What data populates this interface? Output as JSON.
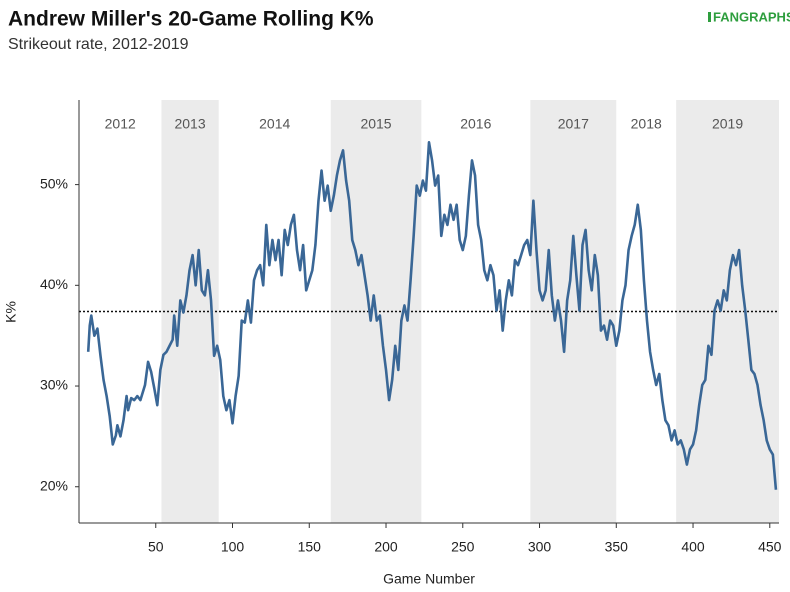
{
  "chart_data": {
    "type": "line",
    "title": "Andrew Miller's 20-Game Rolling K%",
    "subtitle": "Strikeout rate, 2012-2019",
    "logo": "FANGRAPHS",
    "xlabel": "Game Number",
    "ylabel": "K%",
    "color": "#3a6796",
    "xlim": [
      0,
      456
    ],
    "ylim": [
      16.4,
      58.4
    ],
    "xticks": [
      50,
      100,
      150,
      200,
      250,
      300,
      350,
      400,
      450
    ],
    "yticks": [
      {
        "value": 20,
        "label": "20%"
      },
      {
        "value": 30,
        "label": "30%"
      },
      {
        "value": 40,
        "label": "40%"
      },
      {
        "value": 50,
        "label": "50%"
      }
    ],
    "reference_line": 37.4,
    "seasons": [
      {
        "label": "2012",
        "start": 0,
        "end": 53.7,
        "shaded": false
      },
      {
        "label": "2013",
        "start": 53.7,
        "end": 91,
        "shaded": true
      },
      {
        "label": "2014",
        "start": 91,
        "end": 164,
        "shaded": false
      },
      {
        "label": "2015",
        "start": 164,
        "end": 223,
        "shaded": true
      },
      {
        "label": "2016",
        "start": 223,
        "end": 294,
        "shaded": false
      },
      {
        "label": "2017",
        "start": 294,
        "end": 350,
        "shaded": true
      },
      {
        "label": "2018",
        "start": 350,
        "end": 389,
        "shaded": false
      },
      {
        "label": "2019",
        "start": 389,
        "end": 456,
        "shaded": true
      }
    ],
    "x": [
      6,
      7,
      8,
      10,
      12,
      14,
      16,
      18,
      20,
      22,
      24,
      25,
      27,
      29,
      31,
      32,
      34,
      36,
      38,
      40,
      43,
      45,
      47,
      49,
      51,
      53,
      55,
      57,
      59,
      61,
      62,
      64,
      66,
      68,
      70,
      72,
      74,
      76,
      78,
      80,
      82,
      84,
      86,
      88,
      90,
      92,
      94,
      96,
      98,
      100,
      102,
      104,
      106,
      108,
      110,
      112,
      114,
      116,
      118,
      120,
      122,
      124,
      126,
      128,
      130,
      132,
      134,
      136,
      138,
      140,
      142,
      144,
      146,
      148,
      150,
      152,
      154,
      156,
      158,
      160,
      162,
      164,
      166,
      168,
      170,
      172,
      174,
      176,
      178,
      180,
      182,
      184,
      186,
      188,
      190,
      192,
      194,
      196,
      198,
      200,
      202,
      204,
      206,
      208,
      210,
      212,
      214,
      216,
      218,
      220,
      222,
      224,
      226,
      228,
      230,
      232,
      234,
      236,
      238,
      240,
      242,
      244,
      246,
      248,
      250,
      252,
      254,
      256,
      258,
      260,
      262,
      264,
      266,
      268,
      270,
      272,
      274,
      276,
      278,
      280,
      282,
      284,
      286,
      288,
      290,
      292,
      294,
      296,
      298,
      300,
      302,
      304,
      306,
      308,
      310,
      312,
      314,
      316,
      318,
      320,
      322,
      324,
      326,
      328,
      330,
      332,
      334,
      336,
      338,
      340,
      342,
      344,
      346,
      348,
      350,
      352,
      354,
      356,
      358,
      360,
      362,
      364,
      366,
      368,
      370,
      372,
      374,
      376,
      378,
      380,
      382,
      384,
      386,
      388,
      390,
      392,
      394,
      396,
      398,
      400,
      402,
      404,
      406,
      408,
      410,
      412,
      414,
      416,
      418,
      420,
      422,
      424,
      426,
      428,
      430,
      432,
      434,
      436,
      438,
      440,
      442,
      444,
      446,
      448,
      450,
      452,
      454
    ],
    "values": [
      33.4,
      36,
      37,
      35,
      35.7,
      33,
      30.6,
      29,
      27,
      24.2,
      25.1,
      26.1,
      25,
      26.6,
      29,
      27.6,
      28.8,
      28.6,
      29,
      28.6,
      30.1,
      32.4,
      31.4,
      29.8,
      28.1,
      31.6,
      33.1,
      33.4,
      34,
      34.6,
      37,
      34,
      38.5,
      37.3,
      39,
      41.5,
      43,
      40,
      43.5,
      39.5,
      39,
      41.5,
      38.5,
      33,
      34,
      32.6,
      29,
      27.6,
      28.6,
      26.3,
      29,
      31,
      36.5,
      36.3,
      38.5,
      36.3,
      40.5,
      41.5,
      42,
      40,
      46,
      42,
      44.5,
      42.5,
      44.5,
      41,
      45.5,
      44,
      46,
      47,
      43.5,
      41.5,
      44,
      39.5,
      40.5,
      41.5,
      44,
      48.4,
      51.4,
      48.4,
      49.9,
      47.4,
      48.9,
      50.9,
      52.4,
      53.4,
      50.4,
      48.4,
      44.5,
      43.5,
      42,
      43,
      41,
      39,
      36.5,
      39,
      36.5,
      37,
      34,
      31.6,
      28.6,
      30.6,
      34,
      31.6,
      36.5,
      38,
      36.5,
      40.5,
      44.9,
      49.9,
      48.9,
      50.4,
      49.4,
      54.2,
      52.4,
      49.9,
      50.9,
      44.9,
      47,
      46,
      48,
      46.5,
      48,
      44.5,
      43.5,
      44.9,
      48.9,
      52.4,
      50.9,
      46,
      44.5,
      41.5,
      40.5,
      42,
      41,
      37.5,
      39.5,
      35.5,
      38.5,
      40.5,
      39,
      42.5,
      42,
      43,
      44,
      44.5,
      43,
      48.4,
      43.5,
      39.5,
      38.5,
      39.5,
      43.5,
      39,
      36.5,
      38.5,
      36.5,
      33.4,
      38.5,
      40.5,
      44.9,
      41,
      37.5,
      44,
      45.5,
      41.5,
      39.5,
      43,
      41,
      35.5,
      36,
      34.6,
      36.5,
      36,
      34,
      35.5,
      38.5,
      40,
      43.5,
      44.9,
      46,
      48,
      45.5,
      40.5,
      36.5,
      33.4,
      31.6,
      30.1,
      31.2,
      28.6,
      26.6,
      26.1,
      24.6,
      25.6,
      24.2,
      24.6,
      23.7,
      22.2,
      23.7,
      24.2,
      25.6,
      28.1,
      30.1,
      30.6,
      34,
      33.1,
      37.5,
      38.5,
      37.5,
      39.5,
      38.5,
      41.5,
      43,
      42,
      43.5,
      40,
      37.5,
      34.6,
      31.6,
      31.2,
      30.1,
      28.1,
      26.6,
      24.6,
      23.7,
      23.2,
      19.7
    ]
  }
}
